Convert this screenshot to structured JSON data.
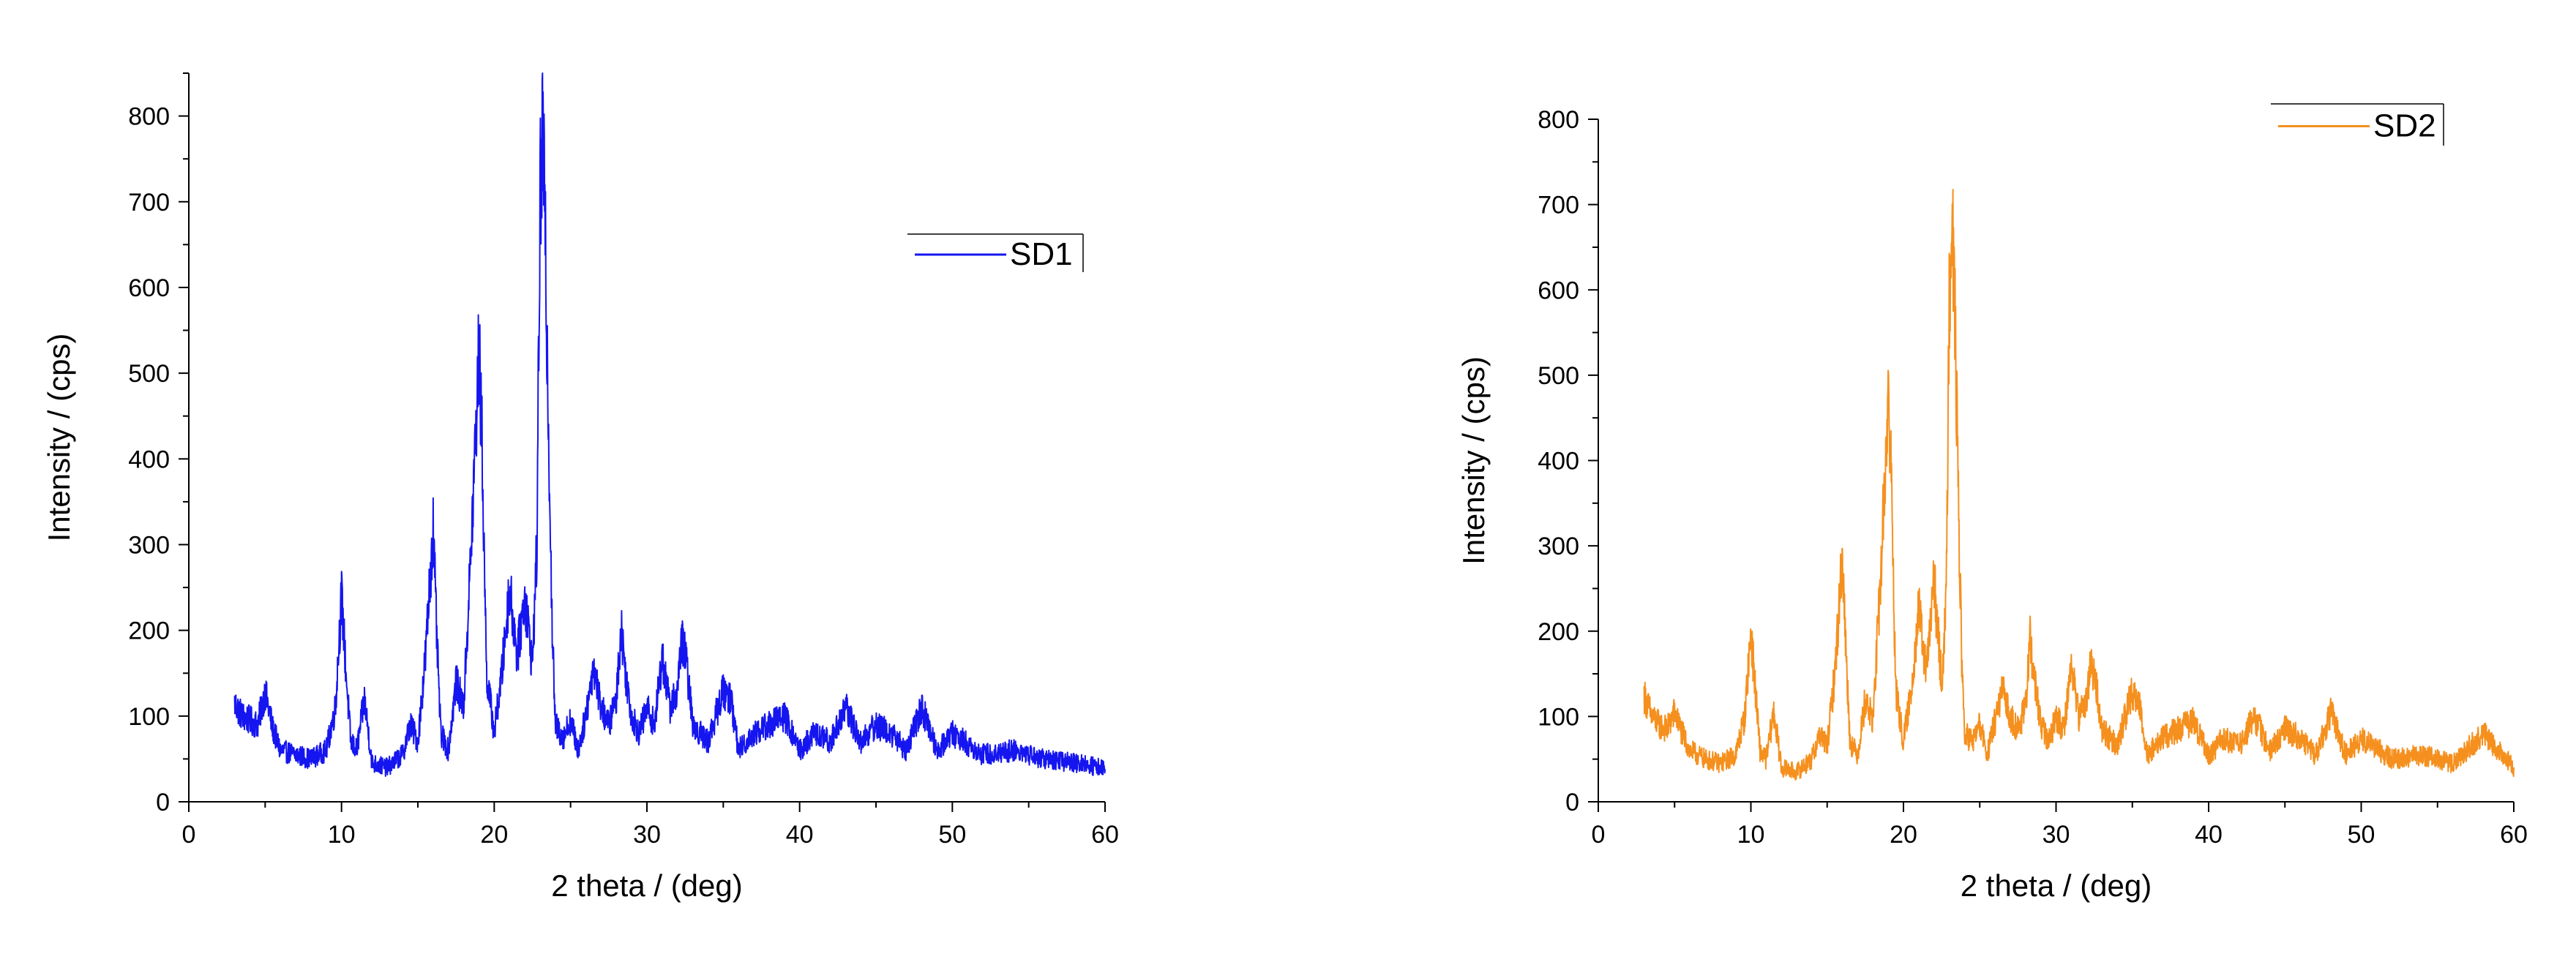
{
  "chart_data": [
    {
      "type": "line",
      "title": "",
      "xlabel": "2 theta / (deg)",
      "ylabel": "Intensity / (cps)",
      "xlim": [
        0,
        60
      ],
      "ylim": [
        0,
        850
      ],
      "xticks": [
        0,
        10,
        20,
        30,
        40,
        50,
        60
      ],
      "yticks": [
        0,
        100,
        200,
        300,
        400,
        500,
        600,
        700,
        800
      ],
      "xtick_labels": [
        "0",
        "10",
        "20",
        "30",
        "40",
        "50",
        "60"
      ],
      "ytick_labels": [
        "0",
        "100",
        "200",
        "300",
        "400",
        "500",
        "600",
        "700",
        "800"
      ],
      "grid": false,
      "legend_position": "top-right",
      "series": [
        {
          "name": "SD1",
          "color": "#1515f0",
          "x": [
            3,
            3.5,
            4,
            4.5,
            5,
            5.5,
            6,
            7,
            8,
            9,
            9.6,
            10,
            10.3,
            10.6,
            11,
            11.5,
            12,
            13,
            14,
            14.5,
            15,
            15.5,
            16,
            16.2,
            16.5,
            17,
            17.5,
            18,
            18.5,
            19,
            19.2,
            19.5,
            20,
            20.5,
            21,
            21.5,
            22,
            22.5,
            22.8,
            23,
            23.2,
            23.5,
            23.8,
            24,
            24.5,
            25,
            25.5,
            26,
            26.5,
            27,
            27.5,
            28,
            28.3,
            28.6,
            29,
            29.5,
            30,
            30.5,
            31,
            31.5,
            32,
            32.3,
            32.6,
            33,
            34,
            35,
            35.5,
            36,
            37,
            38,
            39,
            40,
            41,
            42,
            43,
            44,
            45,
            46,
            47,
            48,
            49,
            50,
            52,
            54,
            56,
            58,
            60
          ],
          "y": [
            115,
            100,
            95,
            90,
            128,
            85,
            60,
            55,
            50,
            60,
            110,
            240,
            150,
            70,
            60,
            120,
            45,
            40,
            55,
            90,
            70,
            170,
            320,
            210,
            80,
            60,
            140,
            110,
            300,
            525,
            420,
            150,
            80,
            150,
            250,
            170,
            240,
            160,
            300,
            700,
            780,
            500,
            200,
            90,
            75,
            95,
            60,
            100,
            160,
            110,
            90,
            120,
            205,
            150,
            100,
            80,
            110,
            90,
            170,
            110,
            130,
            190,
            160,
            90,
            70,
            130,
            120,
            60,
            80,
            90,
            100,
            60,
            80,
            70,
            110,
            70,
            90,
            80,
            60,
            110,
            60,
            80,
            55,
            60,
            50,
            45,
            40
          ]
        }
      ]
    },
    {
      "type": "line",
      "title": "",
      "xlabel": "2 theta / (deg)",
      "ylabel": "Intensity / (cps)",
      "xlim": [
        0,
        60
      ],
      "ylim": [
        0,
        800
      ],
      "xticks": [
        0,
        10,
        20,
        30,
        40,
        50,
        60
      ],
      "yticks": [
        0,
        100,
        200,
        300,
        400,
        500,
        600,
        700,
        800
      ],
      "xtick_labels": [
        "0",
        "10",
        "20",
        "30",
        "40",
        "50",
        "60"
      ],
      "ytick_labels": [
        "0",
        "100",
        "200",
        "300",
        "400",
        "500",
        "600",
        "700",
        "800"
      ],
      "grid": false,
      "legend_position": "top-right",
      "series": [
        {
          "name": "SD2",
          "color": "#f5901e",
          "x": [
            3,
            3.5,
            4,
            4.5,
            5,
            5.5,
            6,
            7,
            8,
            9,
            9.6,
            10,
            10.3,
            10.6,
            11,
            11.5,
            12,
            13,
            14,
            14.5,
            15,
            15.5,
            16,
            16.2,
            16.5,
            17,
            17.5,
            18,
            18.5,
            19,
            19.2,
            19.5,
            20,
            20.5,
            21,
            21.5,
            22,
            22.5,
            22.8,
            23,
            23.2,
            23.5,
            23.8,
            24,
            24.5,
            25,
            25.5,
            26,
            26.5,
            27,
            27.5,
            28,
            28.3,
            28.6,
            29,
            29.5,
            30,
            30.5,
            31,
            31.5,
            32,
            32.3,
            32.6,
            33,
            34,
            35,
            35.5,
            36,
            37,
            38,
            39,
            40,
            41,
            42,
            43,
            44,
            45,
            46,
            47,
            48,
            49,
            50,
            52,
            54,
            56,
            58,
            60
          ],
          "y": [
            125,
            100,
            90,
            85,
            105,
            80,
            60,
            50,
            45,
            55,
            100,
            200,
            130,
            60,
            50,
            105,
            40,
            35,
            50,
            80,
            65,
            150,
            290,
            190,
            70,
            55,
            120,
            95,
            260,
            475,
            380,
            130,
            70,
            130,
            225,
            150,
            260,
            140,
            230,
            600,
            710,
            450,
            180,
            80,
            70,
            90,
            55,
            95,
            130,
            100,
            85,
            110,
            190,
            140,
            90,
            70,
            100,
            85,
            160,
            100,
            120,
            165,
            140,
            85,
            65,
            130,
            110,
            55,
            75,
            85,
            95,
            55,
            75,
            65,
            100,
            60,
            85,
            75,
            55,
            105,
            55,
            75,
            50,
            55,
            45,
            80,
            40
          ]
        }
      ]
    }
  ]
}
